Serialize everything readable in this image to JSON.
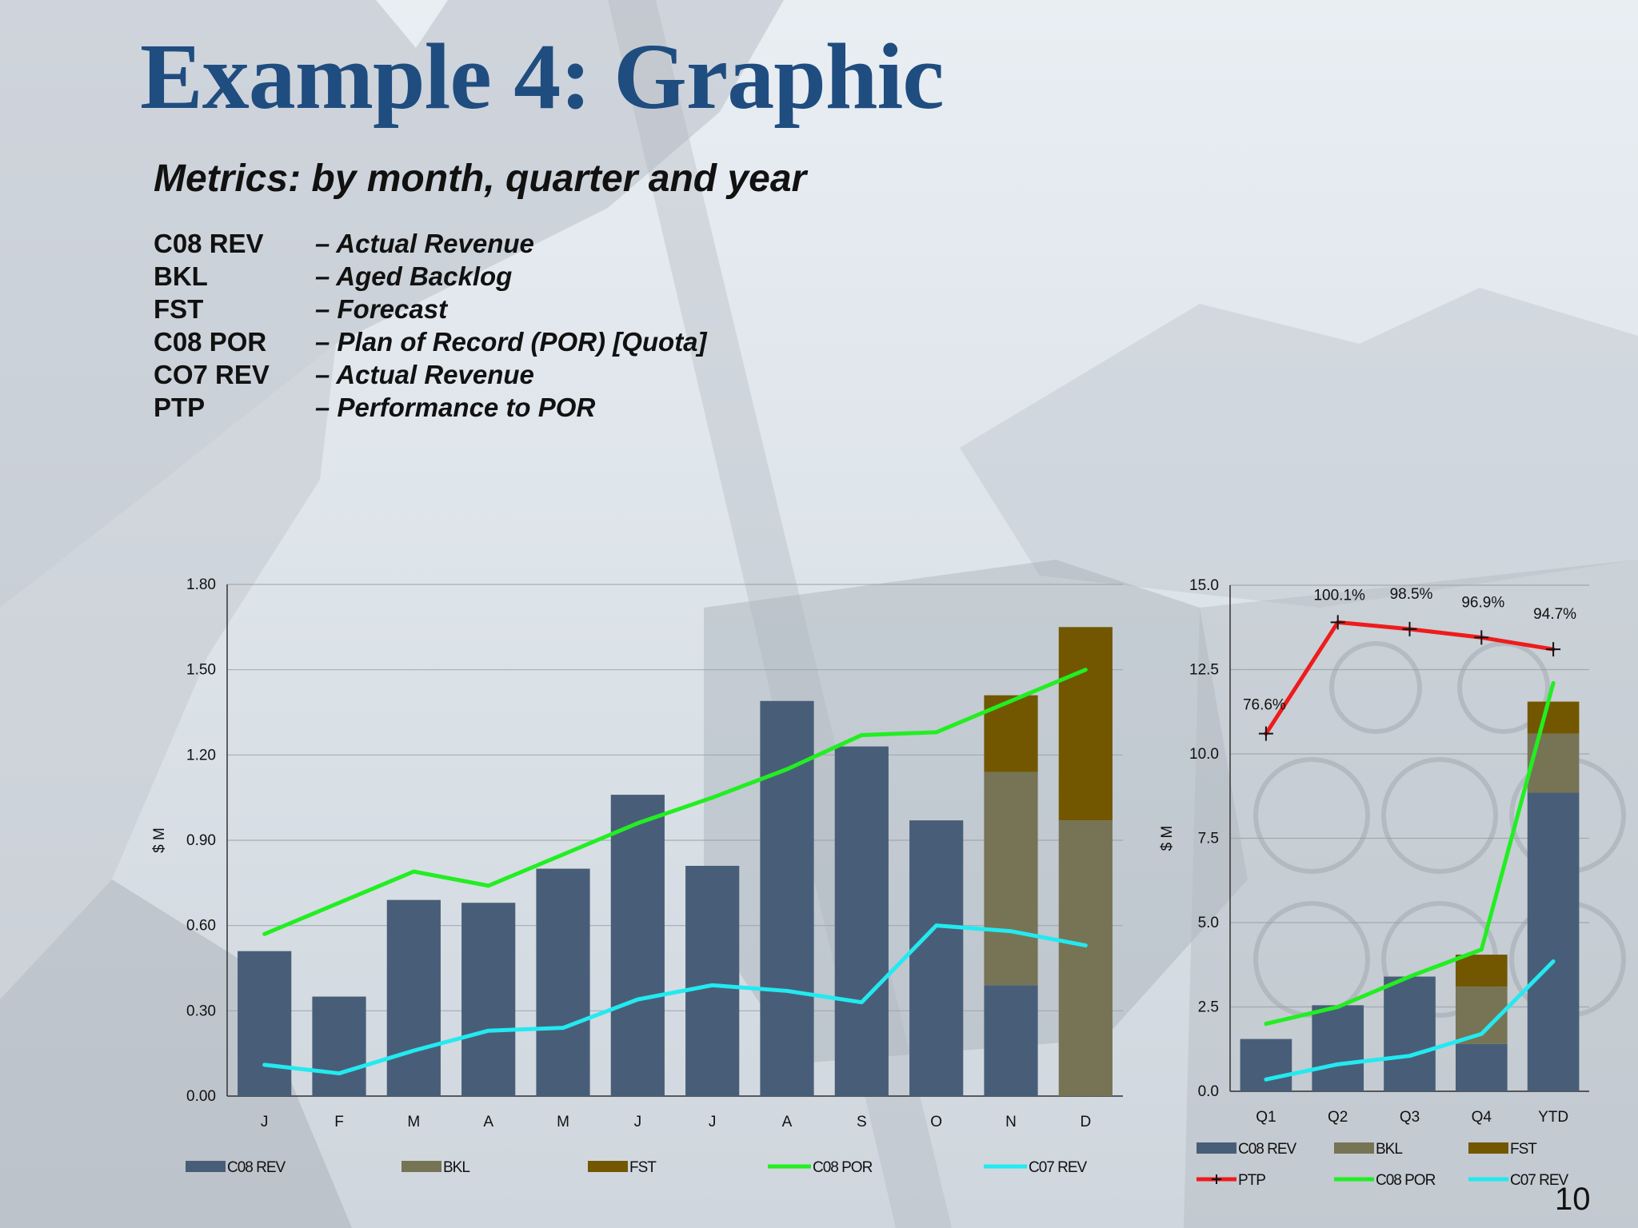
{
  "slide": {
    "title": "Example 4: Graphic",
    "subtitle": "Metrics: by month, quarter and year",
    "page_number": "10",
    "definitions": [
      {
        "term": "C08 REV",
        "desc": "– Actual Revenue"
      },
      {
        "term": "BKL",
        "desc": "– Aged Backlog"
      },
      {
        "term": "FST",
        "desc": "– Forecast"
      },
      {
        "term": "C08 POR",
        "desc": "– Plan of Record (POR) [Quota]"
      },
      {
        "term": "CO7 REV",
        "desc": "– Actual Revenue"
      },
      {
        "term": "PTP",
        "desc": "– Performance to POR"
      }
    ]
  },
  "colors": {
    "C08 REV": "#485e78",
    "BKL": "#767455",
    "FST": "#725700",
    "C08 POR": "#22ee22",
    "C07 REV": "#22eaf0",
    "PTP": "#ee1c1c"
  },
  "chart_data": [
    {
      "type": "bar",
      "stacked": true,
      "title": "",
      "xlabel": "",
      "ylabel": "$ M",
      "ylim": [
        0,
        1.8
      ],
      "yticks": [
        "0.00",
        "0.30",
        "0.60",
        "0.90",
        "1.20",
        "1.50",
        "1.80"
      ],
      "categories": [
        "J",
        "F",
        "M",
        "A",
        "M",
        "J",
        "J",
        "A",
        "S",
        "O",
        "N",
        "D"
      ],
      "series": [
        {
          "name": "C08 REV",
          "kind": "bar",
          "values": [
            0.51,
            0.35,
            0.69,
            0.68,
            0.8,
            1.06,
            0.81,
            1.39,
            1.23,
            0.97,
            0.39,
            0.0
          ]
        },
        {
          "name": "BKL",
          "kind": "bar",
          "values": [
            0,
            0,
            0,
            0,
            0,
            0,
            0,
            0,
            0,
            0,
            0.75,
            0.97
          ]
        },
        {
          "name": "FST",
          "kind": "bar",
          "values": [
            0,
            0,
            0,
            0,
            0,
            0,
            0,
            0,
            0,
            0,
            0.27,
            0.68
          ]
        },
        {
          "name": "C08 POR",
          "kind": "line",
          "values": [
            0.57,
            0.68,
            0.79,
            0.74,
            0.85,
            0.96,
            1.05,
            1.15,
            1.27,
            1.28,
            1.39,
            1.5
          ]
        },
        {
          "name": "C07 REV",
          "kind": "line",
          "values": [
            0.11,
            0.08,
            0.16,
            0.23,
            0.24,
            0.34,
            0.39,
            0.37,
            0.33,
            0.6,
            0.58,
            0.53
          ]
        }
      ],
      "legend": [
        "C08 REV",
        "BKL",
        "FST",
        "C08 POR",
        "C07 REV"
      ],
      "legend_position": "bottom",
      "grid": true
    },
    {
      "type": "bar",
      "stacked": true,
      "title": "",
      "xlabel": "",
      "ylabel": "$ M",
      "ylim": [
        0,
        15
      ],
      "yticks": [
        "0.0",
        "2.5",
        "5.0",
        "7.5",
        "10.0",
        "12.5",
        "15.0"
      ],
      "categories": [
        "Q1",
        "Q2",
        "Q3",
        "Q4",
        "YTD"
      ],
      "series": [
        {
          "name": "C08 REV",
          "kind": "bar",
          "values": [
            1.55,
            2.55,
            3.4,
            1.4,
            8.85
          ]
        },
        {
          "name": "BKL",
          "kind": "bar",
          "values": [
            0,
            0,
            0,
            1.7,
            1.75
          ]
        },
        {
          "name": "FST",
          "kind": "bar",
          "values": [
            0,
            0,
            0,
            0.95,
            0.95
          ]
        },
        {
          "name": "PTP",
          "kind": "line_marker",
          "values": [
            10.6,
            13.9,
            13.7,
            13.45,
            13.1
          ],
          "labels": [
            "76.6%",
            "100.1%",
            "98.5%",
            "96.9%",
            "94.7%"
          ]
        },
        {
          "name": "C08 POR",
          "kind": "line",
          "values": [
            2.0,
            2.5,
            3.4,
            4.2,
            12.1
          ]
        },
        {
          "name": "C07 REV",
          "kind": "line",
          "values": [
            0.35,
            0.8,
            1.05,
            1.7,
            3.85
          ]
        }
      ],
      "legend": [
        "C08 REV",
        "BKL",
        "FST",
        "PTP",
        "C08 POR",
        "C07 REV"
      ],
      "legend_position": "bottom",
      "grid": true
    }
  ]
}
